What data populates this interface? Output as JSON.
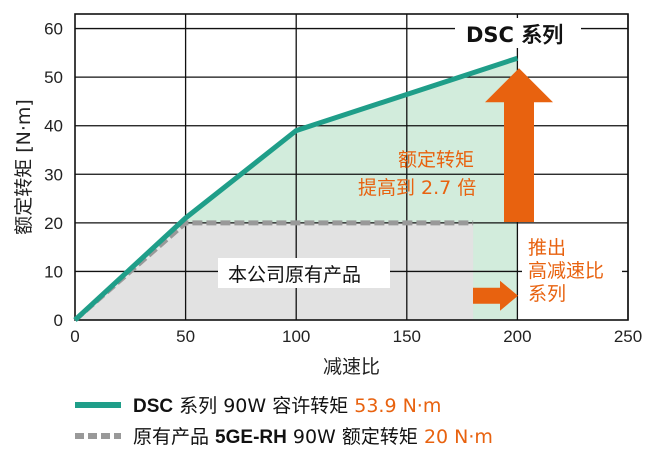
{
  "chart_data": {
    "type": "line",
    "xlabel": "减速比",
    "ylabel": "额定转矩 [N·m]",
    "xlim": [
      0,
      250
    ],
    "ylim": [
      0,
      63
    ],
    "xticks": [
      0,
      50,
      100,
      150,
      200,
      250
    ],
    "yticks": [
      0,
      10,
      20,
      30,
      40,
      50,
      60
    ],
    "grid": true,
    "series": [
      {
        "name": "DSC 系列 90W 容许转矩 53.9 N·m",
        "style": "solid",
        "color": "#1f9e89",
        "x": [
          0,
          50,
          100,
          200
        ],
        "y": [
          0,
          21,
          39,
          53.9
        ]
      },
      {
        "name": "原有产品 5GE-RH 90W 额定转矩 20 N·m",
        "style": "dashed",
        "color": "#999999",
        "x": [
          0,
          50,
          180
        ],
        "y": [
          0,
          20,
          20
        ]
      }
    ],
    "annotations": {
      "series_top_label": "DSC 系列",
      "torque_increase_line1": "额定转矩",
      "torque_increase_line2": "提高到 2.7 倍",
      "old_area_label": "本公司原有产品",
      "ratio_line1": "推出",
      "ratio_line2": "高减速比",
      "ratio_line3": "系列"
    },
    "colors": {
      "new_fill": "#d2ecdc",
      "old_fill": "#e2e2e2",
      "arrow": "#e8620f",
      "new_line": "#1f9e89",
      "old_line": "#999999"
    }
  },
  "legend": {
    "item1": {
      "bold": "DSC",
      "text": " 系列 90W 容许转矩 ",
      "value": "53.9 N·m"
    },
    "item2": {
      "prefix": "原有产品 ",
      "bold": "5GE-RH",
      "text": " 90W 额定转矩 ",
      "value": "20 N·m"
    }
  }
}
